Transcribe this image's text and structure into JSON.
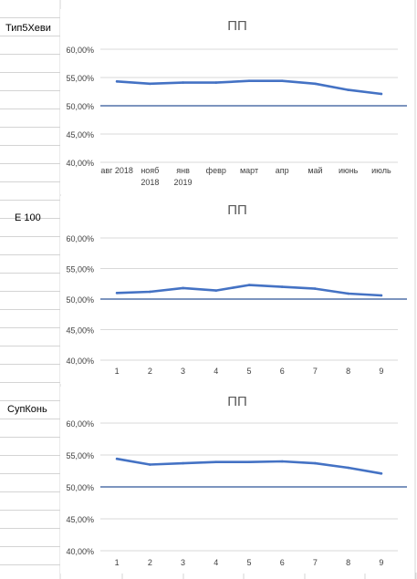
{
  "sheet": {
    "row_labels": [
      "Тип5Хеви",
      "E 100",
      "СупКонь"
    ]
  },
  "colors": {
    "series_line": "#4472C4",
    "threshold_line": "#2F5597",
    "grid": "#D9D9D9",
    "tick_text": "#404040",
    "title_text": "#595959",
    "cell_border": "#D4D4D4"
  },
  "chart_data": [
    {
      "type": "line",
      "title": "ПП",
      "categories": [
        "авг 2018",
        "нояб 2018",
        "янв 2019",
        "февр",
        "март",
        "апр",
        "май",
        "июнь",
        "июль"
      ],
      "series": [
        {
          "values": [
            0.543,
            0.539,
            0.541,
            0.541,
            0.544,
            0.544,
            0.539,
            0.528,
            0.521
          ]
        }
      ],
      "reference_line": 0.5,
      "yticks": [
        "60,00%",
        "55,00%",
        "50,00%",
        "45,00%",
        "40,00%"
      ],
      "ylim": [
        0.4,
        0.6
      ],
      "grid": true,
      "legend": "none"
    },
    {
      "type": "line",
      "title": "ПП",
      "categories": [
        "1",
        "2",
        "3",
        "4",
        "5",
        "6",
        "7",
        "8",
        "9"
      ],
      "series": [
        {
          "values": [
            0.51,
            0.512,
            0.518,
            0.514,
            0.523,
            0.52,
            0.517,
            0.509,
            0.506
          ]
        }
      ],
      "reference_line": 0.5,
      "yticks": [
        "60,00%",
        "55,00%",
        "50,00%",
        "45,00%",
        "40,00%"
      ],
      "ylim": [
        0.4,
        0.6
      ],
      "grid": true,
      "legend": "none"
    },
    {
      "type": "line",
      "title": "ПП",
      "categories": [
        "1",
        "2",
        "3",
        "4",
        "5",
        "6",
        "7",
        "8",
        "9"
      ],
      "series": [
        {
          "values": [
            0.544,
            0.535,
            0.537,
            0.539,
            0.539,
            0.54,
            0.537,
            0.53,
            0.521
          ]
        }
      ],
      "reference_line": 0.5,
      "yticks": [
        "60,00%",
        "55,00%",
        "50,00%",
        "45,00%",
        "40,00%"
      ],
      "ylim": [
        0.4,
        0.6
      ],
      "grid": true,
      "legend": "none"
    }
  ]
}
